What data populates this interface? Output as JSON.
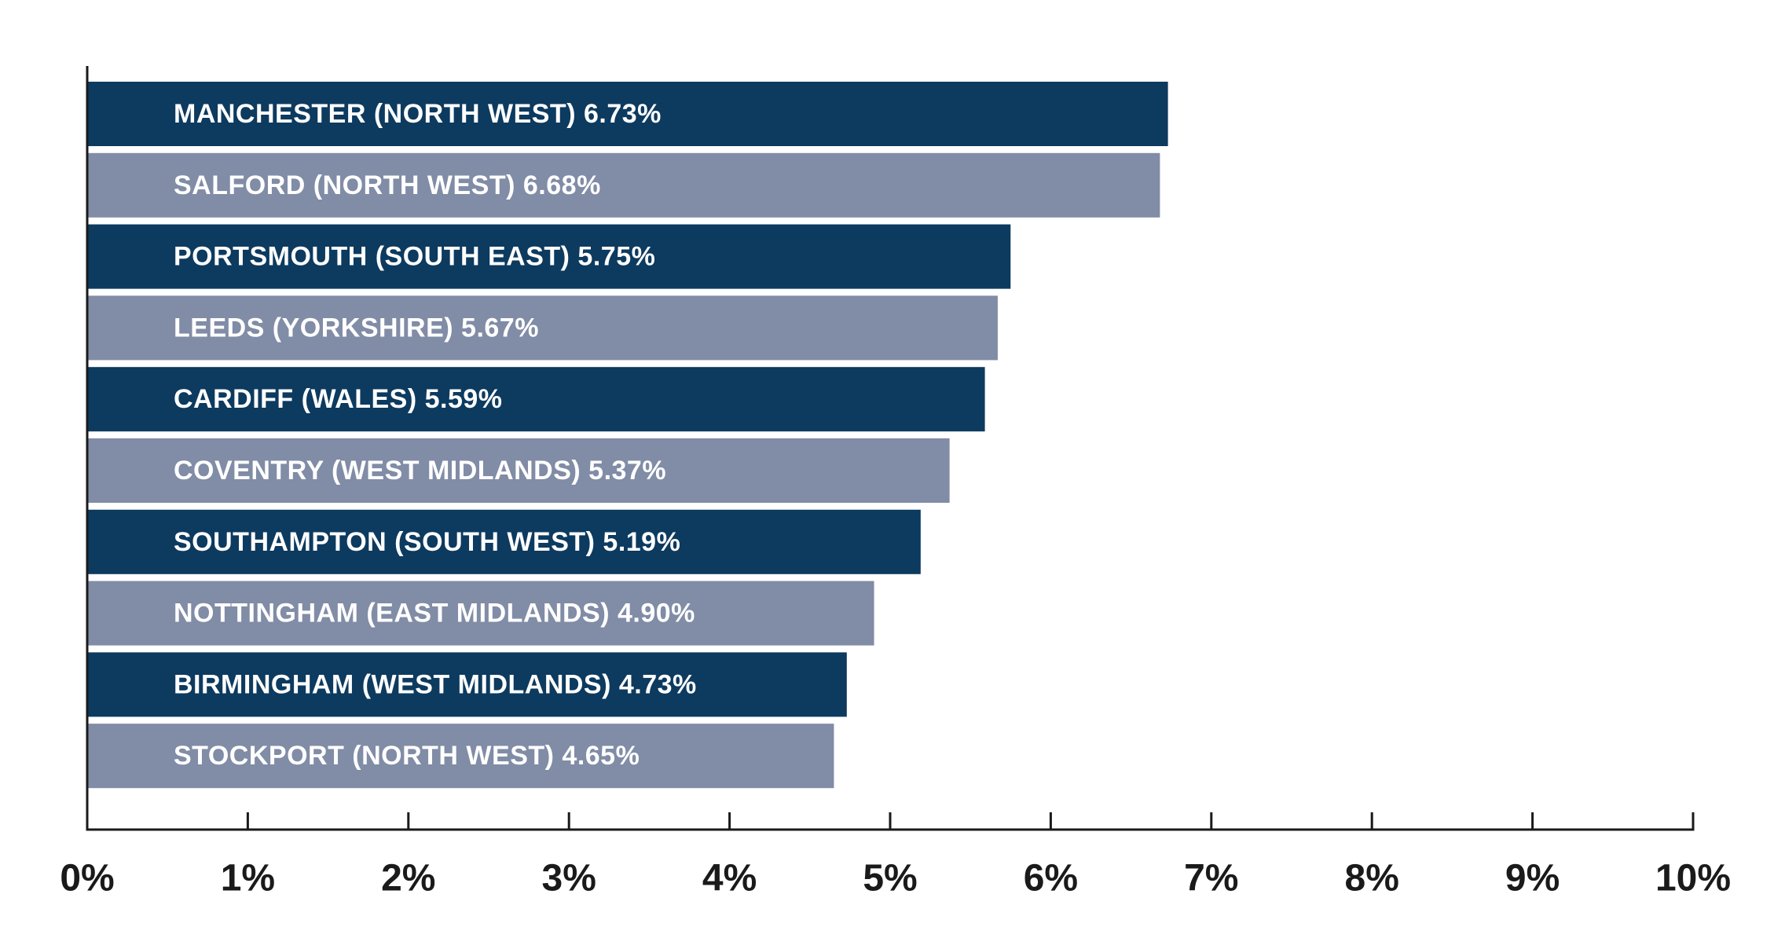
{
  "chart_data": {
    "type": "bar",
    "orientation": "horizontal",
    "title": "",
    "xlabel": "",
    "ylabel": "",
    "xlim": [
      0,
      10
    ],
    "grid": false,
    "legend": "none",
    "categories": [
      "MANCHESTER (NORTH WEST)",
      "SALFORD (NORTH WEST)",
      "PORTSMOUTH (SOUTH EAST)",
      "LEEDS (YORKSHIRE)",
      "CARDIFF (WALES)",
      "COVENTRY (WEST MIDLANDS)",
      "SOUTHAMPTON (SOUTH WEST)",
      "NOTTINGHAM (EAST MIDLANDS)",
      "BIRMINGHAM (WEST MIDLANDS)",
      "STOCKPORT (NORTH WEST)"
    ],
    "values": [
      6.73,
      6.68,
      5.75,
      5.67,
      5.59,
      5.37,
      5.19,
      4.9,
      4.73,
      4.65
    ],
    "value_labels": [
      "6.73%",
      "6.68%",
      "5.75%",
      "5.67%",
      "5.59%",
      "5.37%",
      "5.19%",
      "4.90%",
      "4.73%",
      "4.65%"
    ],
    "bar_labels": [
      "MANCHESTER (NORTH WEST) 6.73%",
      "SALFORD (NORTH WEST) 6.68%",
      "PORTSMOUTH (SOUTH EAST) 5.75%",
      "LEEDS (YORKSHIRE) 5.67%",
      "CARDIFF (WALES) 5.59%",
      "COVENTRY (WEST MIDLANDS) 5.37%",
      "SOUTHAMPTON (SOUTH WEST) 5.19%",
      "NOTTINGHAM (EAST MIDLANDS) 4.90%",
      "BIRMINGHAM (WEST MIDLANDS) 4.73%",
      "STOCKPORT (NORTH WEST) 4.65%"
    ],
    "x_ticks": [
      0,
      1,
      2,
      3,
      4,
      5,
      6,
      7,
      8,
      9,
      10
    ],
    "x_tick_labels": [
      "0%",
      "1%",
      "2%",
      "3%",
      "4%",
      "5%",
      "6%",
      "7%",
      "8%",
      "9%",
      "10%"
    ],
    "colors": {
      "bar_dark": "#0d3a5f",
      "bar_light": "#818ca6",
      "axis": "#1a1a1a",
      "bar_text": "#ffffff",
      "tick_text": "#1a1a1a"
    }
  }
}
